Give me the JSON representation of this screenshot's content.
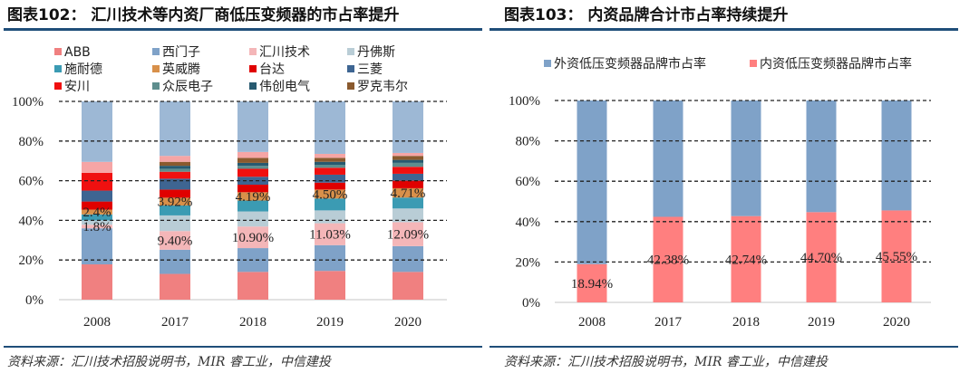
{
  "chart_data": [
    {
      "type": "bar",
      "stacked": true,
      "title": "图表102： 汇川技术等内资厂商低压变频器的市占率提升",
      "categories": [
        "2008",
        "2017",
        "2018",
        "2019",
        "2020"
      ],
      "ylim": [
        0,
        100
      ],
      "yticks": [
        "0%",
        "20%",
        "40%",
        "60%",
        "80%",
        "100%"
      ],
      "grid": "dashed horizontal",
      "legend": "top",
      "series": [
        {
          "name": "ABB",
          "color": "#f08080",
          "values": [
            17.8,
            13.0,
            14.0,
            14.5,
            14.0
          ]
        },
        {
          "name": "西门子",
          "color": "#7fa2c8",
          "values": [
            18.2,
            12.2,
            12.0,
            13.0,
            13.0
          ]
        },
        {
          "name": "汇川技术",
          "color": "#f4b6b8",
          "values": [
            1.8,
            9.4,
            10.9,
            11.03,
            12.09
          ],
          "labels": [
            "1.8%",
            "9.40%",
            "10.90%",
            "11.03%",
            "12.09%"
          ]
        },
        {
          "name": "丹佛斯",
          "color": "#b9cdd6",
          "values": [
            2.2,
            7.9,
            7.6,
            6.5,
            6.9
          ]
        },
        {
          "name": "施耐德",
          "color": "#3b9bb3",
          "values": [
            3.0,
            5.0,
            5.5,
            6.0,
            5.5
          ]
        },
        {
          "name": "英威腾",
          "color": "#d8904a",
          "values": [
            2.4,
            3.92,
            4.19,
            4.5,
            4.71
          ],
          "labels": [
            "2.4%",
            "3.92%",
            "4.19%",
            "4.50%",
            "4.71%"
          ]
        },
        {
          "name": "台达",
          "color": "#e00000",
          "values": [
            4.1,
            4.1,
            3.8,
            3.5,
            3.8
          ]
        },
        {
          "name": "三菱",
          "color": "#3e6592",
          "values": [
            5.5,
            5.5,
            4.0,
            4.0,
            3.5
          ]
        },
        {
          "name": "安川",
          "color": "#f01010",
          "values": [
            9.0,
            3.5,
            4.0,
            3.5,
            3.5
          ]
        },
        {
          "name": "众辰电子",
          "color": "#5e8e8e",
          "values": [
            0,
            1.5,
            1.5,
            1.5,
            2.0
          ]
        },
        {
          "name": "伟创电气",
          "color": "#275a70",
          "values": [
            0,
            1.5,
            1.5,
            1.5,
            1.5
          ]
        },
        {
          "name": "罗克韦尔",
          "color": "#8a5a2e",
          "values": [
            0,
            2.0,
            2.5,
            2.0,
            2.0
          ]
        },
        {
          "color": "#f6a5a5",
          "values": [
            5.5,
            3.0,
            3.0,
            2.0,
            1.5
          ]
        },
        {
          "color": "#9db8d5",
          "values": [
            30.5,
            27.5,
            25.5,
            26.5,
            26.0
          ]
        }
      ],
      "source": "资料来源：汇川技术招股说明书，MIR 睿工业，中信建投"
    },
    {
      "type": "bar",
      "stacked": true,
      "title": "图表103： 内资品牌合计市占率持续提升",
      "categories": [
        "2008",
        "2017",
        "2018",
        "2019",
        "2020"
      ],
      "ylim": [
        0,
        100
      ],
      "yticks": [
        "0%",
        "20%",
        "40%",
        "60%",
        "80%",
        "100%"
      ],
      "grid": "dashed horizontal",
      "legend": "top",
      "series": [
        {
          "name": "内资低压变频器品牌市占率",
          "color": "#ff7f7f",
          "values": [
            18.94,
            42.38,
            42.74,
            44.7,
            45.55
          ],
          "labels": [
            "18.94%",
            "42.38%",
            "42.74%",
            "44.70%",
            "45.55%"
          ]
        },
        {
          "name": "外资低压变频器品牌市占率",
          "color": "#7fa2c8",
          "values": [
            81.06,
            57.62,
            57.26,
            55.3,
            54.45
          ]
        }
      ],
      "legend_order": [
        "外资低压变频器品牌市占率",
        "内资低压变频器品牌市占率"
      ],
      "source": "资料来源：汇川技术招股说明书，MIR 睿工业，中信建投"
    }
  ],
  "colors": {
    "rule": "#1f4e79",
    "grid": "#222222",
    "axis": "#d9d9d9"
  }
}
